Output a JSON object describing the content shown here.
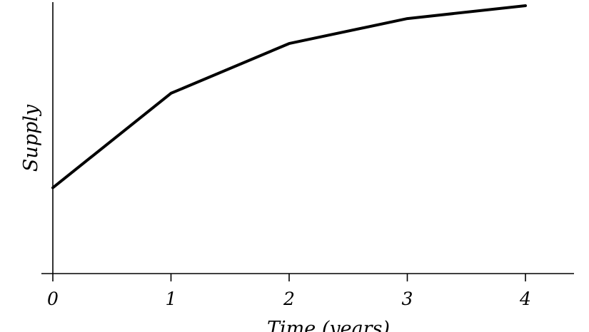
{
  "chart_data": {
    "type": "line",
    "title": "",
    "xlabel": "Time (years)",
    "ylabel": "Supply",
    "x": [
      0,
      1,
      2,
      3,
      4
    ],
    "x_tick_labels": [
      "0",
      "1",
      "2",
      "3",
      "4"
    ],
    "series": [
      {
        "values": [
          1.0,
          2.1,
          2.68,
          2.97,
          3.12
        ],
        "color": "#000000"
      }
    ],
    "xlim": [
      0,
      4.4
    ],
    "ylim": [
      0,
      3.2
    ],
    "y_ticks_shown": false,
    "grid": false,
    "legend": "none"
  }
}
